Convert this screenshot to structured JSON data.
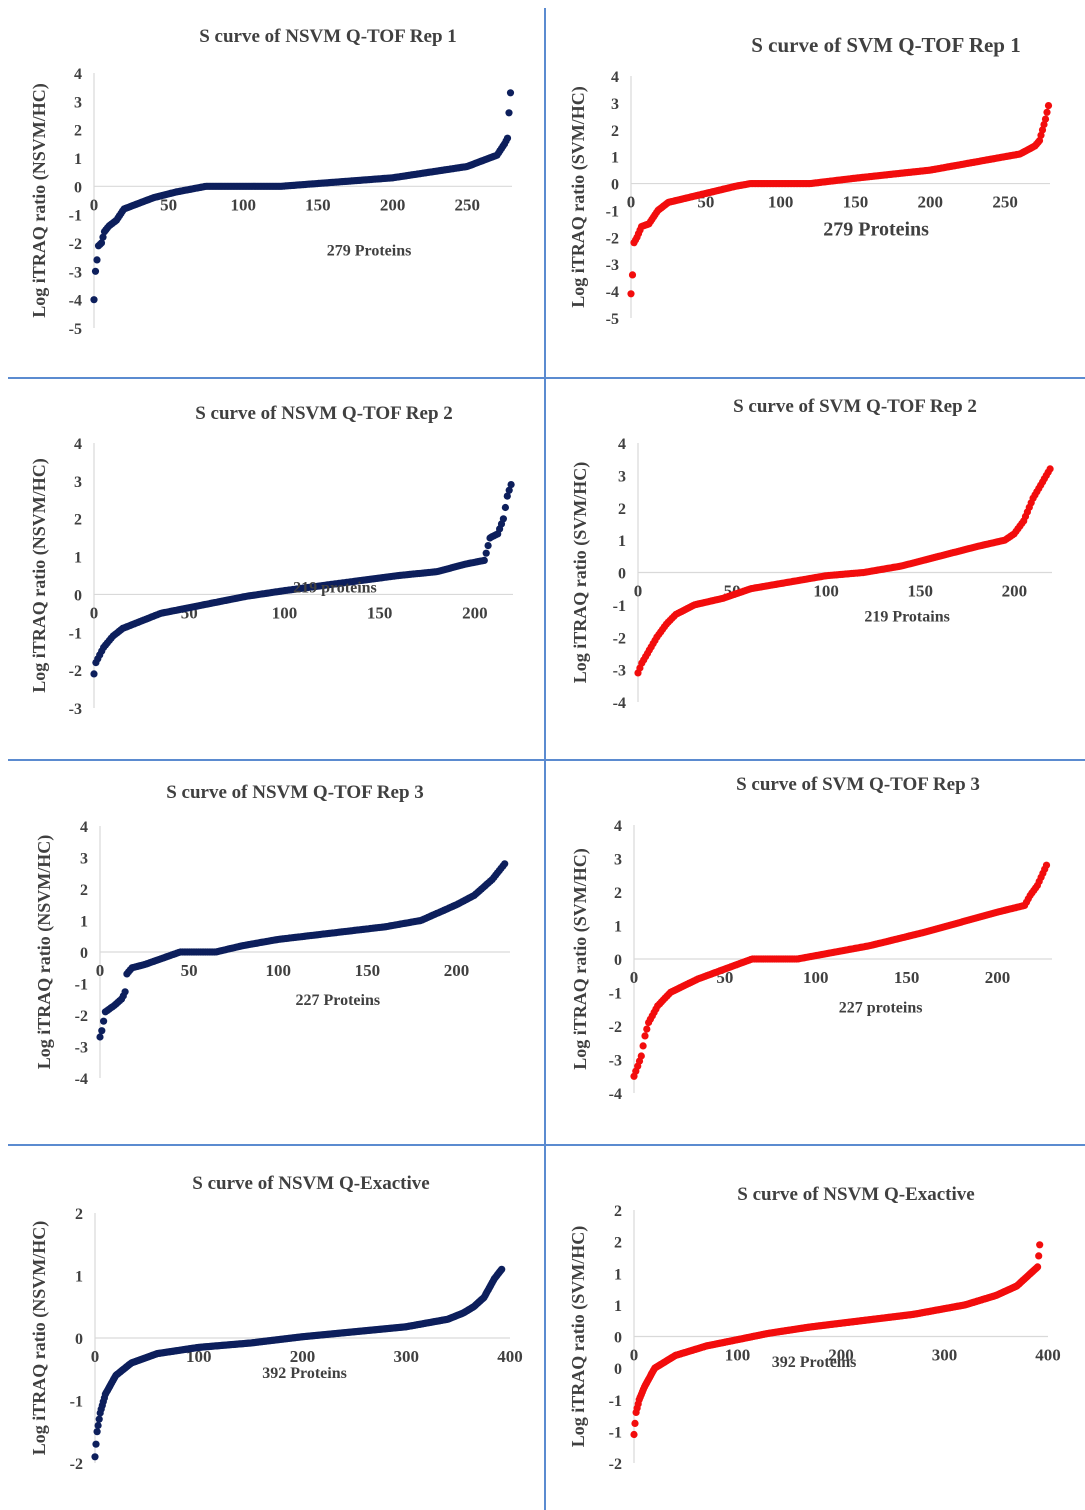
{
  "layout": {
    "rows": 4,
    "cols": 2,
    "divider_color": "#5b8bd0"
  },
  "chart_data": [
    {
      "type": "scatter",
      "title": "S curve of NSVM Q-TOF  Rep 1",
      "ylabel": "Log iTRAQ ratio (NSVM/HC)",
      "xlabel": "",
      "annotation": "279 Proteins",
      "color": "#0d1f5c",
      "n": 279,
      "xlim": [
        0,
        280
      ],
      "ylim": [
        -5,
        4
      ],
      "xticks": [
        0,
        50,
        100,
        150,
        200,
        250
      ],
      "yticks": [
        -5,
        -4,
        -3,
        -2,
        -1,
        0,
        1,
        2,
        3,
        4
      ],
      "curve": [
        [
          0,
          -4.0
        ],
        [
          1,
          -3.0
        ],
        [
          2,
          -2.6
        ],
        [
          3,
          -2.1
        ],
        [
          5,
          -2.0
        ],
        [
          7,
          -1.6
        ],
        [
          10,
          -1.4
        ],
        [
          15,
          -1.2
        ],
        [
          20,
          -0.8
        ],
        [
          30,
          -0.6
        ],
        [
          40,
          -0.4
        ],
        [
          55,
          -0.2
        ],
        [
          75,
          0.0
        ],
        [
          125,
          0.0
        ],
        [
          150,
          0.1
        ],
        [
          200,
          0.3
        ],
        [
          225,
          0.5
        ],
        [
          250,
          0.7
        ],
        [
          265,
          1.0
        ],
        [
          270,
          1.1
        ],
        [
          275,
          1.5
        ],
        [
          277,
          1.7
        ],
        [
          278,
          2.6
        ],
        [
          279,
          3.3
        ]
      ]
    },
    {
      "type": "scatter",
      "title": "S curve of SVM Q-TOF  Rep 1",
      "ylabel": "Log iTRAQ ratio (SVM/HC)",
      "xlabel": "",
      "annotation": "279 Proteins",
      "color": "#f20d0d",
      "n": 279,
      "xlim": [
        0,
        280
      ],
      "ylim": [
        -5,
        4
      ],
      "xticks": [
        0,
        50,
        100,
        150,
        200,
        250
      ],
      "yticks": [
        -5,
        -4,
        -3,
        -2,
        -1,
        0,
        1,
        2,
        3,
        4
      ],
      "curve": [
        [
          0,
          -4.1
        ],
        [
          1,
          -3.4
        ],
        [
          2,
          -2.2
        ],
        [
          4,
          -2.0
        ],
        [
          7,
          -1.6
        ],
        [
          12,
          -1.5
        ],
        [
          18,
          -1.0
        ],
        [
          25,
          -0.7
        ],
        [
          40,
          -0.5
        ],
        [
          55,
          -0.3
        ],
        [
          70,
          -0.1
        ],
        [
          80,
          0.0
        ],
        [
          120,
          0.0
        ],
        [
          150,
          0.2
        ],
        [
          200,
          0.5
        ],
        [
          230,
          0.8
        ],
        [
          260,
          1.1
        ],
        [
          270,
          1.4
        ],
        [
          273,
          1.6
        ],
        [
          275,
          2.0
        ],
        [
          277,
          2.4
        ],
        [
          279,
          2.9
        ]
      ]
    },
    {
      "type": "scatter",
      "title": "S curve of NSVM Q-TOF  Rep 2",
      "ylabel": "Log iTRAQ ratio (NSVM/HC)",
      "xlabel": "",
      "annotation": "219 proteins",
      "color": "#0d1f5c",
      "n": 219,
      "xlim": [
        0,
        220
      ],
      "ylim": [
        -3,
        4
      ],
      "xticks": [
        0,
        50,
        100,
        150,
        200
      ],
      "yticks": [
        -3,
        -2,
        -1,
        0,
        1,
        2,
        3,
        4
      ],
      "curve": [
        [
          0,
          -2.1
        ],
        [
          1,
          -1.8
        ],
        [
          3,
          -1.6
        ],
        [
          5,
          -1.4
        ],
        [
          10,
          -1.1
        ],
        [
          15,
          -0.9
        ],
        [
          25,
          -0.7
        ],
        [
          35,
          -0.5
        ],
        [
          50,
          -0.35
        ],
        [
          65,
          -0.2
        ],
        [
          80,
          -0.05
        ],
        [
          100,
          0.1
        ],
        [
          130,
          0.3
        ],
        [
          160,
          0.5
        ],
        [
          180,
          0.6
        ],
        [
          195,
          0.8
        ],
        [
          205,
          0.9
        ],
        [
          208,
          1.5
        ],
        [
          212,
          1.6
        ],
        [
          215,
          2.0
        ],
        [
          217,
          2.6
        ],
        [
          219,
          2.9
        ]
      ]
    },
    {
      "type": "scatter",
      "title": "S curve of SVM Q-TOF  Rep 2",
      "ylabel": "Log iTRAQ ratio (SVM/HC)",
      "xlabel": "",
      "annotation": "219 Protains",
      "color": "#f20d0d",
      "n": 219,
      "xlim": [
        0,
        220
      ],
      "ylim": [
        -4,
        4
      ],
      "xticks": [
        0,
        50,
        100,
        150,
        200
      ],
      "yticks": [
        -4,
        -3,
        -2,
        -1,
        0,
        1,
        2,
        3,
        4
      ],
      "curve": [
        [
          0,
          -3.1
        ],
        [
          2,
          -2.8
        ],
        [
          5,
          -2.5
        ],
        [
          10,
          -2.0
        ],
        [
          15,
          -1.6
        ],
        [
          20,
          -1.3
        ],
        [
          30,
          -1.0
        ],
        [
          45,
          -0.8
        ],
        [
          60,
          -0.5
        ],
        [
          80,
          -0.3
        ],
        [
          100,
          -0.1
        ],
        [
          120,
          0.0
        ],
        [
          140,
          0.2
        ],
        [
          160,
          0.5
        ],
        [
          180,
          0.8
        ],
        [
          195,
          1.0
        ],
        [
          200,
          1.2
        ],
        [
          205,
          1.6
        ],
        [
          210,
          2.3
        ],
        [
          215,
          2.8
        ],
        [
          219,
          3.2
        ]
      ]
    },
    {
      "type": "scatter",
      "title": "S curve of NSVM Q-TOF  Rep 3",
      "ylabel": "Log iTRAQ ratio (NSVM/HC)",
      "xlabel": "",
      "annotation": "227 Proteins",
      "color": "#0d1f5c",
      "n": 227,
      "xlim": [
        0,
        230
      ],
      "ylim": [
        -4,
        4
      ],
      "xticks": [
        0,
        50,
        100,
        150,
        200
      ],
      "yticks": [
        -4,
        -3,
        -2,
        -1,
        0,
        1,
        2,
        3,
        4
      ],
      "curve": [
        [
          0,
          -2.7
        ],
        [
          1,
          -2.5
        ],
        [
          3,
          -1.9
        ],
        [
          8,
          -1.7
        ],
        [
          12,
          -1.5
        ],
        [
          14,
          -1.3
        ],
        [
          15,
          -0.7
        ],
        [
          18,
          -0.5
        ],
        [
          25,
          -0.4
        ],
        [
          35,
          -0.2
        ],
        [
          45,
          0.0
        ],
        [
          65,
          0.0
        ],
        [
          80,
          0.2
        ],
        [
          100,
          0.4
        ],
        [
          130,
          0.6
        ],
        [
          160,
          0.8
        ],
        [
          180,
          1.0
        ],
        [
          200,
          1.5
        ],
        [
          210,
          1.8
        ],
        [
          220,
          2.3
        ],
        [
          227,
          2.8
        ]
      ]
    },
    {
      "type": "scatter",
      "title": "S curve of SVM Q-TOF  Rep 3",
      "ylabel": "Log iTRAQ ratio (SVM/HC)",
      "xlabel": "",
      "annotation": "227 proteins",
      "color": "#f20d0d",
      "n": 227,
      "xlim": [
        0,
        230
      ],
      "ylim": [
        -4,
        4
      ],
      "xticks": [
        0,
        50,
        100,
        150,
        200
      ],
      "yticks": [
        -4,
        -3,
        -2,
        -1,
        0,
        1,
        2,
        3,
        4
      ],
      "curve": [
        [
          0,
          -3.5
        ],
        [
          2,
          -3.2
        ],
        [
          4,
          -2.9
        ],
        [
          6,
          -2.3
        ],
        [
          8,
          -1.9
        ],
        [
          10,
          -1.7
        ],
        [
          13,
          -1.4
        ],
        [
          20,
          -1.0
        ],
        [
          35,
          -0.6
        ],
        [
          50,
          -0.3
        ],
        [
          65,
          0.0
        ],
        [
          90,
          0.0
        ],
        [
          100,
          0.1
        ],
        [
          130,
          0.4
        ],
        [
          160,
          0.8
        ],
        [
          180,
          1.1
        ],
        [
          200,
          1.4
        ],
        [
          215,
          1.6
        ],
        [
          218,
          1.9
        ],
        [
          222,
          2.2
        ],
        [
          227,
          2.8
        ]
      ]
    },
    {
      "type": "scatter",
      "title": "S curve of NSVM Q-Exactive",
      "ylabel": "Log iTRAQ ratio (NSVM/HC)",
      "xlabel": "",
      "annotation": "392 Proteins",
      "color": "#0d1f5c",
      "n": 392,
      "xlim": [
        0,
        400
      ],
      "ylim": [
        -2,
        2
      ],
      "xticks": [
        0,
        100,
        200,
        300,
        400
      ],
      "yticks": [
        -2,
        -1,
        0,
        1,
        2
      ],
      "curve": [
        [
          0,
          -1.9
        ],
        [
          2,
          -1.5
        ],
        [
          5,
          -1.2
        ],
        [
          10,
          -0.9
        ],
        [
          20,
          -0.6
        ],
        [
          35,
          -0.4
        ],
        [
          60,
          -0.25
        ],
        [
          100,
          -0.15
        ],
        [
          150,
          -0.08
        ],
        [
          200,
          0.02
        ],
        [
          250,
          0.1
        ],
        [
          300,
          0.18
        ],
        [
          340,
          0.3
        ],
        [
          355,
          0.4
        ],
        [
          365,
          0.5
        ],
        [
          375,
          0.65
        ],
        [
          385,
          0.95
        ],
        [
          392,
          1.1
        ]
      ]
    },
    {
      "type": "scatter",
      "title": "S curve of NSVM Q-Exactive",
      "ylabel": "Log iTRAQ ratio (SVM/HC)",
      "xlabel": "",
      "annotation": "392 Proteins",
      "color": "#f20d0d",
      "n": 392,
      "xlim": [
        0,
        400
      ],
      "ylim": [
        -2,
        2
      ],
      "ytick_values": [
        -2,
        -1.5,
        -1,
        -0.5,
        0,
        0.5,
        1,
        1.5,
        2
      ],
      "ytick_labels": [
        "-2",
        "-1",
        "-1",
        "0",
        "0",
        "1",
        "1",
        "2",
        "2"
      ],
      "xticks": [
        0,
        100,
        200,
        300,
        400
      ],
      "curve": [
        [
          0,
          -1.55
        ],
        [
          2,
          -1.2
        ],
        [
          5,
          -1.0
        ],
        [
          10,
          -0.8
        ],
        [
          20,
          -0.5
        ],
        [
          40,
          -0.3
        ],
        [
          70,
          -0.15
        ],
        [
          100,
          -0.05
        ],
        [
          130,
          0.05
        ],
        [
          170,
          0.15
        ],
        [
          220,
          0.25
        ],
        [
          270,
          0.35
        ],
        [
          320,
          0.5
        ],
        [
          350,
          0.65
        ],
        [
          370,
          0.8
        ],
        [
          380,
          0.95
        ],
        [
          390,
          1.1
        ],
        [
          392,
          1.45
        ]
      ]
    }
  ]
}
